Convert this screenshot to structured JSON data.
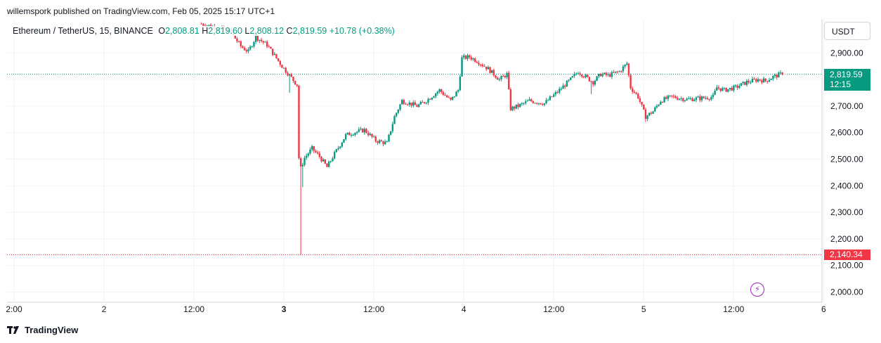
{
  "header": {
    "publisher": "willemspork published on TradingView.com, Feb 05, 2025 15:17 UTC+1"
  },
  "legend": {
    "symbol": "Ethereum / TetherUS, 15, BINANCE",
    "o_key": "O",
    "o_val": "2,808.81",
    "h_key": "H",
    "h_val": "2,819.60",
    "l_key": "L",
    "l_val": "2,808.12",
    "c_key": "C",
    "c_val": "2,819.59",
    "change": "+10.78 (+0.38%)"
  },
  "price_axis": {
    "unit": "USDT",
    "last_price": "2,819.59",
    "countdown": "12:15",
    "low_price": "2,140.34"
  },
  "footer": {
    "brand": "TradingView"
  },
  "colors": {
    "up": "#089981",
    "down": "#f23645",
    "grid": "#f0f3fa",
    "accent": "#9c27b0"
  },
  "icons": {
    "alert": "lightning-bolt-icon",
    "logo": "tradingview-logo-icon"
  },
  "chart_data": {
    "type": "candlestick",
    "title": "Ethereum / TetherUS, 15, BINANCE",
    "xlabel": "",
    "ylabel": "",
    "ylim": [
      1975,
      3025
    ],
    "y_ticks": [
      2000,
      2100,
      2200,
      2300,
      2400,
      2500,
      2600,
      2700,
      2800,
      2900
    ],
    "y_tick_labels": [
      "2,000.00",
      "2,100.00",
      "2,200.00",
      "2,300.00",
      "2,400.00",
      "2,500.00",
      "2,600.00",
      "2,700.00",
      "2,800.00",
      "2,900.00"
    ],
    "x_ticks": [
      {
        "hour": 0,
        "label": "2:00"
      },
      {
        "hour": 12,
        "label": "2"
      },
      {
        "hour": 24,
        "label": "12:00"
      },
      {
        "hour": 36,
        "label": "3"
      },
      {
        "hour": 48,
        "label": "12:00"
      },
      {
        "hour": 60,
        "label": "4"
      },
      {
        "hour": 72,
        "label": "12:00"
      },
      {
        "hour": 84,
        "label": "5"
      },
      {
        "hour": 96,
        "label": "12:00"
      },
      {
        "hour": 108,
        "label": "6"
      }
    ],
    "grid": true,
    "last_close": 2819.59,
    "period_low": 2140.34,
    "path": [
      {
        "hour": 25.0,
        "price": 3010
      },
      {
        "hour": 27.0,
        "price": 2998
      },
      {
        "hour": 29.0,
        "price": 2985
      },
      {
        "hour": 30.5,
        "price": 2925
      },
      {
        "hour": 31.5,
        "price": 2905
      },
      {
        "hour": 32.5,
        "price": 2960
      },
      {
        "hour": 34.0,
        "price": 2930
      },
      {
        "hour": 35.0,
        "price": 2890
      },
      {
        "hour": 36.0,
        "price": 2850
      },
      {
        "hour": 37.0,
        "price": 2815
      },
      {
        "hour": 38.0,
        "price": 2780
      },
      {
        "hour": 38.3,
        "price": 2450
      },
      {
        "hour": 39.0,
        "price": 2505
      },
      {
        "hour": 40.0,
        "price": 2540
      },
      {
        "hour": 41.0,
        "price": 2510
      },
      {
        "hour": 42.0,
        "price": 2470
      },
      {
        "hour": 43.0,
        "price": 2520
      },
      {
        "hour": 44.5,
        "price": 2590
      },
      {
        "hour": 45.5,
        "price": 2600
      },
      {
        "hour": 47.0,
        "price": 2610
      },
      {
        "hour": 48.5,
        "price": 2570
      },
      {
        "hour": 50.0,
        "price": 2560
      },
      {
        "hour": 51.0,
        "price": 2660
      },
      {
        "hour": 52.0,
        "price": 2720
      },
      {
        "hour": 54.0,
        "price": 2700
      },
      {
        "hour": 55.0,
        "price": 2715
      },
      {
        "hour": 57.0,
        "price": 2760
      },
      {
        "hour": 58.5,
        "price": 2720
      },
      {
        "hour": 59.5,
        "price": 2760
      },
      {
        "hour": 60.0,
        "price": 2880
      },
      {
        "hour": 61.0,
        "price": 2885
      },
      {
        "hour": 62.0,
        "price": 2870
      },
      {
        "hour": 63.5,
        "price": 2840
      },
      {
        "hour": 65.0,
        "price": 2800
      },
      {
        "hour": 66.0,
        "price": 2820
      },
      {
        "hour": 66.5,
        "price": 2690
      },
      {
        "hour": 67.5,
        "price": 2700
      },
      {
        "hour": 69.0,
        "price": 2720
      },
      {
        "hour": 71.0,
        "price": 2710
      },
      {
        "hour": 73.0,
        "price": 2760
      },
      {
        "hour": 74.5,
        "price": 2800
      },
      {
        "hour": 75.5,
        "price": 2830
      },
      {
        "hour": 76.5,
        "price": 2810
      },
      {
        "hour": 77.5,
        "price": 2790
      },
      {
        "hour": 78.5,
        "price": 2820
      },
      {
        "hour": 79.5,
        "price": 2815
      },
      {
        "hour": 81.0,
        "price": 2830
      },
      {
        "hour": 82.0,
        "price": 2860
      },
      {
        "hour": 82.5,
        "price": 2770
      },
      {
        "hour": 83.5,
        "price": 2735
      },
      {
        "hour": 84.5,
        "price": 2660
      },
      {
        "hour": 85.5,
        "price": 2680
      },
      {
        "hour": 86.5,
        "price": 2720
      },
      {
        "hour": 88.0,
        "price": 2735
      },
      {
        "hour": 90.0,
        "price": 2725
      },
      {
        "hour": 92.0,
        "price": 2730
      },
      {
        "hour": 93.5,
        "price": 2735
      },
      {
        "hour": 94.0,
        "price": 2770
      },
      {
        "hour": 95.0,
        "price": 2760
      },
      {
        "hour": 96.5,
        "price": 2770
      },
      {
        "hour": 98.0,
        "price": 2790
      },
      {
        "hour": 99.5,
        "price": 2800
      },
      {
        "hour": 100.5,
        "price": 2795
      },
      {
        "hour": 101.5,
        "price": 2810
      },
      {
        "hour": 102.5,
        "price": 2819.59
      }
    ],
    "spikes": [
      {
        "hour": 36.8,
        "price": 2750
      },
      {
        "hour": 38.2,
        "price": 2140.34
      },
      {
        "hour": 38.6,
        "price": 2395
      },
      {
        "hour": 77.0,
        "price": 2745
      },
      {
        "hour": 84.2,
        "price": 2640
      }
    ]
  }
}
